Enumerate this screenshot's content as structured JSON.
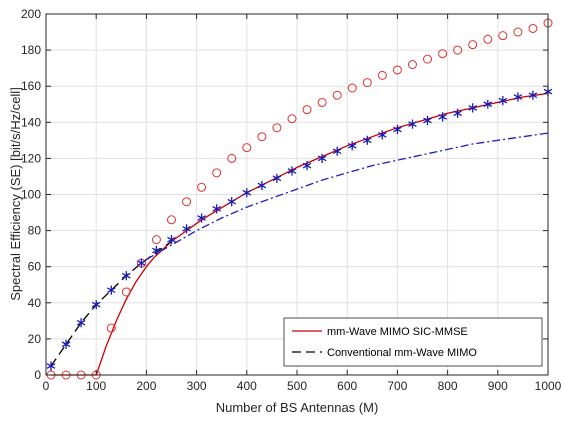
{
  "chart_data": {
    "type": "line",
    "xlabel": "Number of BS Antennas (M)",
    "ylabel": "Spectral Efficiency (SE) [bit/s/Hz/cell]",
    "xlim": [
      0,
      1000
    ],
    "ylim": [
      0,
      200
    ],
    "xticks": [
      0,
      100,
      200,
      300,
      400,
      500,
      600,
      700,
      800,
      900,
      1000
    ],
    "yticks": [
      0,
      20,
      40,
      60,
      80,
      100,
      120,
      140,
      160,
      180,
      200
    ],
    "grid": true,
    "legend_position": "bottom-right",
    "legend": [
      {
        "label": "mm-Wave MIMO SIC-MMSE",
        "color": "#cc0000",
        "style": "solid"
      },
      {
        "label": "Conventional mm-Wave MIMO",
        "color": "#000000",
        "style": "dashed"
      }
    ],
    "series": [
      {
        "name": "mm-Wave MIMO SIC-MMSE",
        "style": "solid",
        "color": "#cc0000",
        "marker": "none",
        "x": [
          10,
          40,
          70,
          100,
          110,
          120,
          130,
          140,
          150,
          160,
          170,
          180,
          190,
          200,
          215,
          230,
          250,
          280,
          310,
          340,
          370,
          400,
          450,
          500,
          550,
          600,
          650,
          700,
          750,
          800,
          850,
          900,
          950,
          1000
        ],
        "y": [
          0,
          0,
          0,
          0,
          8,
          16,
          23,
          30,
          36,
          42,
          47,
          52,
          56,
          60,
          65,
          69,
          74,
          80,
          86,
          91,
          96,
          101,
          108,
          115,
          121,
          127,
          132,
          137,
          141,
          145,
          148,
          151,
          154,
          156
        ]
      },
      {
        "name": "Conventional mm-Wave MIMO",
        "style": "dashed",
        "color": "#000000",
        "marker": "none",
        "x": [
          10,
          40,
          70,
          100,
          130,
          160,
          190,
          220,
          250
        ],
        "y": [
          5,
          17,
          29,
          39,
          47,
          55,
          62,
          68,
          74
        ]
      },
      {
        "style": "dashdot",
        "color": "#1f1fbf",
        "marker": "none",
        "x": [
          200,
          250,
          300,
          350,
          400,
          450,
          500,
          550,
          600,
          650,
          700,
          750,
          800,
          850,
          900,
          950,
          1000
        ],
        "y": [
          64,
          72,
          80,
          87,
          93,
          98,
          103,
          108,
          112,
          116,
          119,
          122,
          125,
          128,
          130,
          132,
          134
        ]
      },
      {
        "style": "none",
        "color": "#e03030",
        "marker": "circle",
        "x": [
          10,
          40,
          70,
          100,
          130,
          160,
          190,
          220,
          250,
          280,
          310,
          340,
          370,
          400,
          430,
          460,
          490,
          520,
          550,
          580,
          610,
          640,
          670,
          700,
          730,
          760,
          790,
          820,
          850,
          880,
          910,
          940,
          970,
          1000
        ],
        "y": [
          0,
          0,
          0,
          0,
          26,
          46,
          62,
          75,
          86,
          96,
          104,
          112,
          120,
          126,
          132,
          137,
          142,
          147,
          151,
          155,
          159,
          162,
          166,
          169,
          172,
          175,
          178,
          180,
          183,
          186,
          188,
          190,
          192,
          195
        ]
      },
      {
        "style": "none",
        "color": "#1a1ab8",
        "marker": "asterisk",
        "x": [
          10,
          40,
          70,
          100,
          130,
          160,
          190,
          220,
          250,
          280,
          310,
          340,
          370,
          400,
          430,
          460,
          490,
          520,
          550,
          580,
          610,
          640,
          670,
          700,
          730,
          760,
          790,
          820,
          850,
          880,
          910,
          940,
          970,
          1000
        ],
        "y": [
          5,
          17,
          29,
          39,
          47,
          55,
          62,
          69,
          75,
          81,
          87,
          92,
          96,
          101,
          105,
          109,
          113,
          116,
          120,
          124,
          127,
          130,
          133,
          136,
          139,
          141,
          143,
          145,
          148,
          150,
          152,
          154,
          155,
          157
        ]
      }
    ]
  }
}
